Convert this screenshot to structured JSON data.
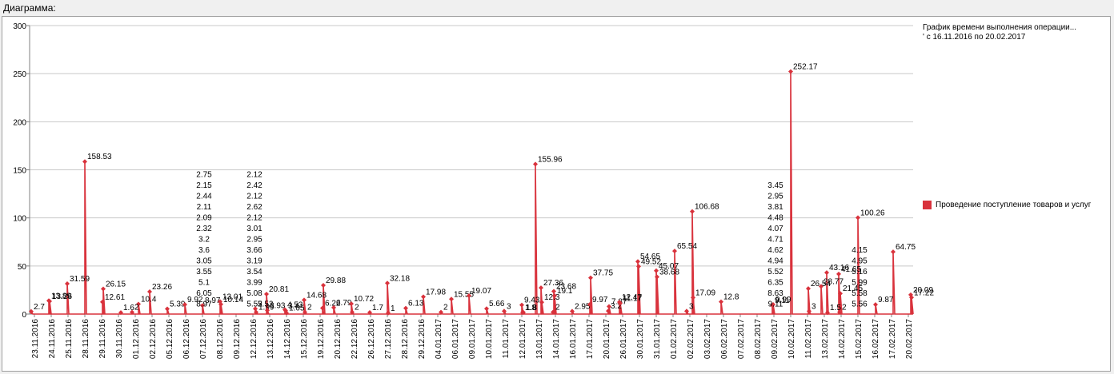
{
  "caption": "Диаграмма:",
  "legend": {
    "title_line1": "График времени выполнения операции...",
    "title_line2": "' с 16.11.2016 по 20.02.2017",
    "series_name": "Проведение поступление товаров и услуг",
    "color": "#d9323c"
  },
  "chart_data": {
    "type": "line",
    "ylim": [
      0,
      300
    ],
    "yticks": [
      0,
      50,
      100,
      150,
      200,
      250,
      300
    ],
    "grid": true,
    "legend_position": "right",
    "x_categories": [
      "23.11.2016",
      "24.11.2016",
      "25.11.2016",
      "28.11.2016",
      "29.11.2016",
      "30.11.2016",
      "01.12.2016",
      "02.12.2016",
      "05.12.2016",
      "06.12.2016",
      "07.12.2016",
      "08.12.2016",
      "09.12.2016",
      "12.12.2016",
      "13.12.2016",
      "14.12.2016",
      "15.12.2016",
      "19.12.2016",
      "20.12.2016",
      "22.12.2016",
      "26.12.2016",
      "27.12.2016",
      "28.12.2016",
      "29.12.2016",
      "04.01.2017",
      "06.01.2017",
      "09.01.2017",
      "10.01.2017",
      "11.01.2017",
      "12.01.2017",
      "13.01.2017",
      "14.01.2017",
      "16.01.2017",
      "17.01.2017",
      "20.01.2017",
      "26.01.2017",
      "30.01.2017",
      "31.01.2017",
      "01.02.2017",
      "02.02.2017",
      "03.02.2017",
      "06.02.2017",
      "07.02.2017",
      "08.02.2017",
      "09.02.2017",
      "10.02.2017",
      "11.02.2017",
      "13.02.2017",
      "14.02.2017",
      "15.02.2017",
      "16.02.2017",
      "17.02.2017",
      "20.02.2017"
    ],
    "labeled_points": [
      {
        "x": "23.11.2016",
        "y": 2.7
      },
      {
        "x": "24.11.2016",
        "y": 13.89
      },
      {
        "x": "24.11.2016",
        "y": 13.26
      },
      {
        "x": "25.11.2016",
        "y": 31.59
      },
      {
        "x": "28.11.2016",
        "y": 158.53
      },
      {
        "x": "29.11.2016",
        "y": 12.61
      },
      {
        "x": "29.11.2016",
        "y": 26.15
      },
      {
        "x": "30.11.2016",
        "y": 1.6
      },
      {
        "x": "01.12.2016",
        "y": 10.4
      },
      {
        "x": "01.12.2016",
        "y": 2
      },
      {
        "x": "02.12.2016",
        "y": 23.26
      },
      {
        "x": "05.12.2016",
        "y": 5.39
      },
      {
        "x": "06.12.2016",
        "y": 9.92
      },
      {
        "x": "07.12.2016",
        "y": 8.97
      },
      {
        "x": "08.12.2016",
        "y": 13.01
      },
      {
        "x": "08.12.2016",
        "y": 10.14
      },
      {
        "x": "12.12.2016",
        "y": 5.52
      },
      {
        "x": "12.12.2016",
        "y": 1.99
      },
      {
        "x": "13.12.2016",
        "y": 20.81
      },
      {
        "x": "13.12.2016",
        "y": 3.93
      },
      {
        "x": "14.12.2016",
        "y": 4.53
      },
      {
        "x": "14.12.2016",
        "y": 3.4
      },
      {
        "x": "14.12.2016",
        "y": 1.05
      },
      {
        "x": "15.12.2016",
        "y": 14.68
      },
      {
        "x": "15.12.2016",
        "y": 2
      },
      {
        "x": "19.12.2016",
        "y": 6.22
      },
      {
        "x": "19.12.2016",
        "y": 29.88
      },
      {
        "x": "20.12.2016",
        "y": 6.79
      },
      {
        "x": "22.12.2016",
        "y": 10.72
      },
      {
        "x": "22.12.2016",
        "y": 2
      },
      {
        "x": "26.12.2016",
        "y": 1.7
      },
      {
        "x": "27.12.2016",
        "y": 32.18
      },
      {
        "x": "27.12.2016",
        "y": 1
      },
      {
        "x": "28.12.2016",
        "y": 6.13
      },
      {
        "x": "29.12.2016",
        "y": 17.98
      },
      {
        "x": "04.01.2017",
        "y": 2
      },
      {
        "x": "06.01.2017",
        "y": 15.55
      },
      {
        "x": "09.01.2017",
        "y": 19.07
      },
      {
        "x": "10.01.2017",
        "y": 5.66
      },
      {
        "x": "11.01.2017",
        "y": 3
      },
      {
        "x": "12.01.2017",
        "y": 9.43
      },
      {
        "x": "12.01.2017",
        "y": 1.8
      },
      {
        "x": "12.01.2017",
        "y": 1.8
      },
      {
        "x": "13.01.2017",
        "y": 27.36
      },
      {
        "x": "13.01.2017",
        "y": 12.3
      },
      {
        "x": "13.01.2017",
        "y": 155.96
      },
      {
        "x": "14.01.2017",
        "y": 2
      },
      {
        "x": "14.01.2017",
        "y": 23.68
      },
      {
        "x": "14.01.2017",
        "y": 19.1
      },
      {
        "x": "16.01.2017",
        "y": 2.95
      },
      {
        "x": "17.01.2017",
        "y": 9.97
      },
      {
        "x": "17.01.2017",
        "y": 37.75
      },
      {
        "x": "20.01.2017",
        "y": 3.2
      },
      {
        "x": "20.01.2017",
        "y": 7.87
      },
      {
        "x": "26.01.2017",
        "y": 12.47
      },
      {
        "x": "26.01.2017",
        "y": 11.17
      },
      {
        "x": "30.01.2017",
        "y": 54.65
      },
      {
        "x": "30.01.2017",
        "y": 49.52
      },
      {
        "x": "31.01.2017",
        "y": 45.07
      },
      {
        "x": "31.01.2017",
        "y": 38.68
      },
      {
        "x": "01.02.2017",
        "y": 65.54
      },
      {
        "x": "02.02.2017",
        "y": 106.68
      },
      {
        "x": "02.02.2017",
        "y": 17.09
      },
      {
        "x": "02.02.2017",
        "y": 3
      },
      {
        "x": "06.02.2017",
        "y": 12.8
      },
      {
        "x": "09.02.2017",
        "y": 9.11
      },
      {
        "x": "09.02.2017",
        "y": 9.99
      },
      {
        "x": "10.02.2017",
        "y": 252.17
      },
      {
        "x": "11.02.2017",
        "y": 26.54
      },
      {
        "x": "11.02.2017",
        "y": 3
      },
      {
        "x": "13.02.2017",
        "y": 43.16
      },
      {
        "x": "13.02.2017",
        "y": 1.5
      },
      {
        "x": "13.02.2017",
        "y": 28.77
      },
      {
        "x": "14.02.2017",
        "y": 41.65
      },
      {
        "x": "14.02.2017",
        "y": 2
      },
      {
        "x": "14.02.2017",
        "y": 21.45
      },
      {
        "x": "15.02.2017",
        "y": 100.26
      },
      {
        "x": "16.02.2017",
        "y": 9.87
      },
      {
        "x": "17.02.2017",
        "y": 64.75
      },
      {
        "x": "20.02.2017",
        "y": 20.09
      },
      {
        "x": "20.02.2017",
        "y": 17.22
      }
    ],
    "stacked_label_groups": [
      {
        "x": "07.12.2016",
        "labels": [
          "2.75",
          "2.15",
          "2.44",
          "2.11",
          "2.09",
          "2.32",
          "3.2",
          "3.6",
          "3.05",
          "3.55",
          "5.1",
          "6.05",
          "8.97"
        ]
      },
      {
        "x": "12.12.2016",
        "labels": [
          "2.12",
          "2.42",
          "2.12",
          "2.62",
          "2.12",
          "3.01",
          "2.95",
          "3.66",
          "3.19",
          "3.54",
          "3.99",
          "5.08",
          "5.52"
        ]
      },
      {
        "x": "09.02.2017",
        "labels": [
          "3.45",
          "2.95",
          "3.81",
          "4.48",
          "4.07",
          "4.71",
          "4.62",
          "4.94",
          "5.52",
          "6.35",
          "8.63",
          "9.11"
        ]
      },
      {
        "x": "15.02.2017",
        "labels": [
          "4.15",
          "4.95",
          "5.16",
          "5.99",
          "5.58",
          "5.56"
        ]
      }
    ]
  }
}
